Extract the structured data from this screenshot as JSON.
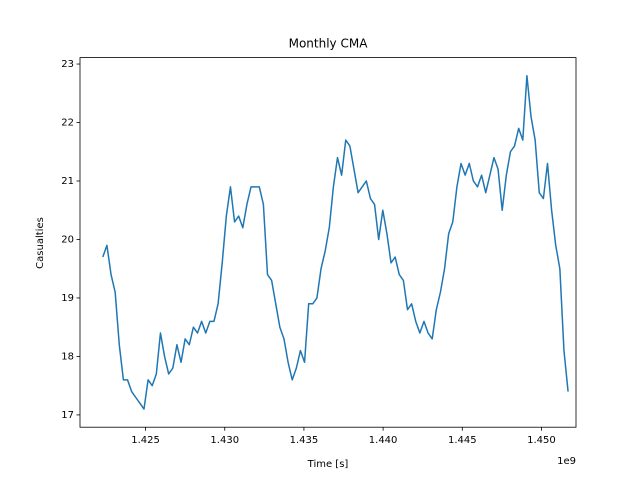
{
  "chart_data": {
    "type": "line",
    "title": "Monthly CMA",
    "x_label": "Time [s]",
    "y_label": "Casualties",
    "x_offset_label": "1e9",
    "color": "#1f77b4",
    "x": [
      1422300000,
      1422560000,
      1422820000,
      1423080000,
      1423340000,
      1423600000,
      1423860000,
      1424120000,
      1424380000,
      1424640000,
      1424900000,
      1425160000,
      1425420000,
      1425680000,
      1425940000,
      1426200000,
      1426460000,
      1426720000,
      1426980000,
      1427240000,
      1427500000,
      1427760000,
      1428020000,
      1428280000,
      1428540000,
      1428800000,
      1429060000,
      1429320000,
      1429580000,
      1429840000,
      1430100000,
      1430360000,
      1430620000,
      1430880000,
      1431140000,
      1431400000,
      1431660000,
      1431920000,
      1432180000,
      1432440000,
      1432700000,
      1432960000,
      1433220000,
      1433480000,
      1433740000,
      1434000000,
      1434260000,
      1434520000,
      1434780000,
      1435040000,
      1435300000,
      1435560000,
      1435820000,
      1436080000,
      1436340000,
      1436600000,
      1436860000,
      1437120000,
      1437380000,
      1437640000,
      1437900000,
      1438160000,
      1438420000,
      1438680000,
      1438940000,
      1439200000,
      1439460000,
      1439720000,
      1439980000,
      1440240000,
      1440500000,
      1440760000,
      1441020000,
      1441280000,
      1441540000,
      1441800000,
      1442060000,
      1442320000,
      1442580000,
      1442840000,
      1443100000,
      1443360000,
      1443620000,
      1443880000,
      1444140000,
      1444400000,
      1444660000,
      1444920000,
      1445180000,
      1445440000,
      1445700000,
      1445960000,
      1446220000,
      1446480000,
      1446740000,
      1447000000,
      1447260000,
      1447520000,
      1447780000,
      1448040000,
      1448300000,
      1448560000,
      1448820000,
      1449080000,
      1449340000,
      1449600000,
      1449860000,
      1450120000,
      1450380000,
      1450640000,
      1450900000,
      1451160000,
      1451420000,
      1451680000
    ],
    "values": [
      19.7,
      19.9,
      19.4,
      19.1,
      18.2,
      17.6,
      17.6,
      17.4,
      17.3,
      17.2,
      17.1,
      17.6,
      17.5,
      17.7,
      18.4,
      18.0,
      17.7,
      17.8,
      18.2,
      17.9,
      18.3,
      18.2,
      18.5,
      18.4,
      18.6,
      18.4,
      18.6,
      18.6,
      18.9,
      19.6,
      20.4,
      20.9,
      20.3,
      20.4,
      20.2,
      20.6,
      20.9,
      20.9,
      20.9,
      20.6,
      19.4,
      19.3,
      18.9,
      18.5,
      18.3,
      17.9,
      17.6,
      17.8,
      18.1,
      17.9,
      18.9,
      18.9,
      19.0,
      19.5,
      19.8,
      20.2,
      20.9,
      21.4,
      21.1,
      21.7,
      21.6,
      21.2,
      20.8,
      20.9,
      21.0,
      20.7,
      20.6,
      20.0,
      20.5,
      20.1,
      19.6,
      19.7,
      19.4,
      19.3,
      18.8,
      18.9,
      18.6,
      18.4,
      18.6,
      18.4,
      18.3,
      18.8,
      19.1,
      19.5,
      20.1,
      20.3,
      20.9,
      21.3,
      21.1,
      21.3,
      21.0,
      20.9,
      21.1,
      20.8,
      21.1,
      21.4,
      21.2,
      20.5,
      21.1,
      21.5,
      21.6,
      21.9,
      21.7,
      22.8,
      22.1,
      21.7,
      20.8,
      20.7,
      21.3,
      20.5,
      19.9,
      19.5,
      18.1,
      17.4
    ],
    "xlim": [
      1420860000,
      1452180000
    ],
    "xticks": [
      {
        "value": 1425000000,
        "label": "1.425"
      },
      {
        "value": 1430000000,
        "label": "1.430"
      },
      {
        "value": 1435000000,
        "label": "1.435"
      },
      {
        "value": 1440000000,
        "label": "1.440"
      },
      {
        "value": 1445000000,
        "label": "1.445"
      },
      {
        "value": 1450000000,
        "label": "1.450"
      }
    ],
    "ylim": [
      16.79,
      23.11
    ],
    "yticks": [
      17,
      18,
      19,
      20,
      21,
      22,
      23
    ],
    "grid": false
  }
}
